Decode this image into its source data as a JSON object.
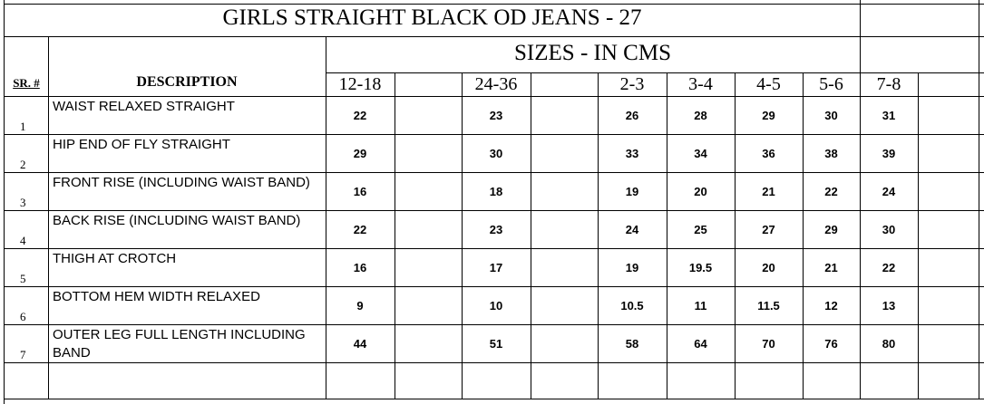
{
  "title": "GIRLS STRAIGHT BLACK OD JEANS - 27",
  "subtitle": "SIZES - IN CMS",
  "headers": {
    "sr": "SR. #",
    "description": "DESCRIPTION",
    "sizes": [
      "12-18",
      "24-36",
      "2-3",
      "3-4",
      "4-5",
      "5-6",
      "7-8"
    ]
  },
  "rows": [
    {
      "sr": 1,
      "description": "WAIST RELAXED STRAIGHT",
      "values": [
        22,
        23,
        26,
        28,
        29,
        30,
        31
      ]
    },
    {
      "sr": 2,
      "description": "HIP END OF FLY STRAIGHT",
      "values": [
        29,
        30,
        33,
        34,
        36,
        38,
        39
      ]
    },
    {
      "sr": 3,
      "description": "FRONT RISE (INCLUDING WAIST BAND)",
      "values": [
        16,
        18,
        19,
        20,
        21,
        22,
        24
      ]
    },
    {
      "sr": 4,
      "description": "BACK RISE (INCLUDING WAIST BAND)",
      "values": [
        22,
        23,
        24,
        25,
        27,
        29,
        30
      ]
    },
    {
      "sr": 5,
      "description": "THIGH AT CROTCH",
      "values": [
        16,
        17,
        19,
        19.5,
        20,
        21,
        22
      ]
    },
    {
      "sr": 6,
      "description": "BOTTOM HEM WIDTH RELAXED",
      "values": [
        9,
        10,
        10.5,
        11,
        11.5,
        12,
        13
      ]
    },
    {
      "sr": 7,
      "description": "OUTER LEG FULL LENGTH INCLUDING BAND",
      "values": [
        44,
        51,
        58,
        64,
        70,
        76,
        80
      ]
    }
  ]
}
